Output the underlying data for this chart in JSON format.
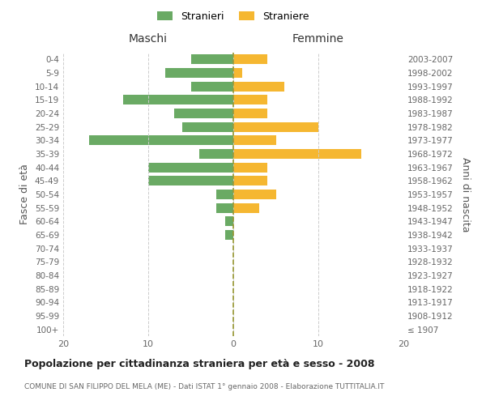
{
  "age_groups": [
    "100+",
    "95-99",
    "90-94",
    "85-89",
    "80-84",
    "75-79",
    "70-74",
    "65-69",
    "60-64",
    "55-59",
    "50-54",
    "45-49",
    "40-44",
    "35-39",
    "30-34",
    "25-29",
    "20-24",
    "15-19",
    "10-14",
    "5-9",
    "0-4"
  ],
  "birth_years": [
    "≤ 1907",
    "1908-1912",
    "1913-1917",
    "1918-1922",
    "1923-1927",
    "1928-1932",
    "1933-1937",
    "1938-1942",
    "1943-1947",
    "1948-1952",
    "1953-1957",
    "1958-1962",
    "1963-1967",
    "1968-1972",
    "1973-1977",
    "1978-1982",
    "1983-1987",
    "1988-1992",
    "1993-1997",
    "1998-2002",
    "2003-2007"
  ],
  "maschi": [
    0,
    0,
    0,
    0,
    0,
    0,
    0,
    1,
    1,
    2,
    2,
    10,
    10,
    4,
    17,
    6,
    7,
    13,
    5,
    8,
    5
  ],
  "femmine": [
    0,
    0,
    0,
    0,
    0,
    0,
    0,
    0,
    0,
    3,
    5,
    4,
    4,
    15,
    5,
    10,
    4,
    4,
    6,
    1,
    4
  ],
  "male_color": "#6aaa64",
  "female_color": "#f5b731",
  "title": "Popolazione per cittadinanza straniera per età e sesso - 2008",
  "subtitle": "COMUNE DI SAN FILIPPO DEL MELA (ME) - Dati ISTAT 1° gennaio 2008 - Elaborazione TUTTITALIA.IT",
  "legend_maschi": "Stranieri",
  "legend_femmine": "Straniere",
  "label_left": "Maschi",
  "label_right": "Femmine",
  "ylabel_left": "Fasce di età",
  "ylabel_right": "Anni di nascita",
  "xlim": 20,
  "background_color": "#ffffff",
  "grid_color": "#cccccc",
  "center_line_color": "#999933"
}
